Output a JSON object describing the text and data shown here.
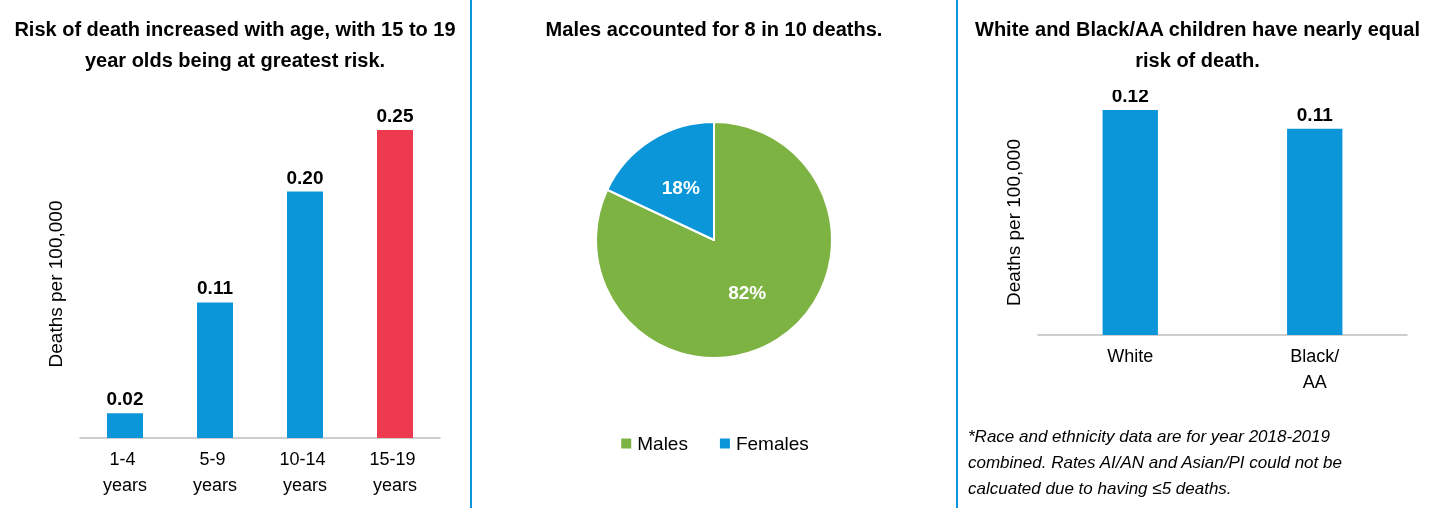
{
  "chart_data": [
    {
      "type": "bar",
      "title": "Risk of death increased with age, with 15 to 19 year olds being at greatest risk.",
      "ylabel": "Deaths per 100,000",
      "categories": [
        "1-4 years",
        "5-9 years",
        "10-14 years",
        "15-19 years"
      ],
      "values": [
        0.02,
        0.11,
        0.2,
        0.25
      ],
      "colors": [
        "#0a96d8",
        "#0a96d8",
        "#0a96d8",
        "#ee3a4f"
      ],
      "value_labels": [
        "0.02",
        "0.11",
        "0.20",
        "0.25"
      ]
    },
    {
      "type": "pie",
      "title": "Males accounted for 8 in 10 deaths.",
      "categories": [
        "Males",
        "Females"
      ],
      "values": [
        82,
        18
      ],
      "colors": [
        "#7cb342",
        "#0a96d8"
      ],
      "value_labels": [
        "82%",
        "18%"
      ],
      "legend": "bottom"
    },
    {
      "type": "bar",
      "title": "White and Black/AA children have nearly equal risk of death.",
      "ylabel": "Deaths per 100,000",
      "categories": [
        "White",
        "Black/AA"
      ],
      "values": [
        0.12,
        0.11
      ],
      "color": "#0a96d8",
      "value_labels": [
        "0.12",
        "0.11"
      ],
      "annotations": [
        "*Race and ethnicity data are for year 2018-2019 combined. Rates AI/AN and Asian/PI could not be calcuated due to having ≤5 deaths."
      ]
    }
  ]
}
